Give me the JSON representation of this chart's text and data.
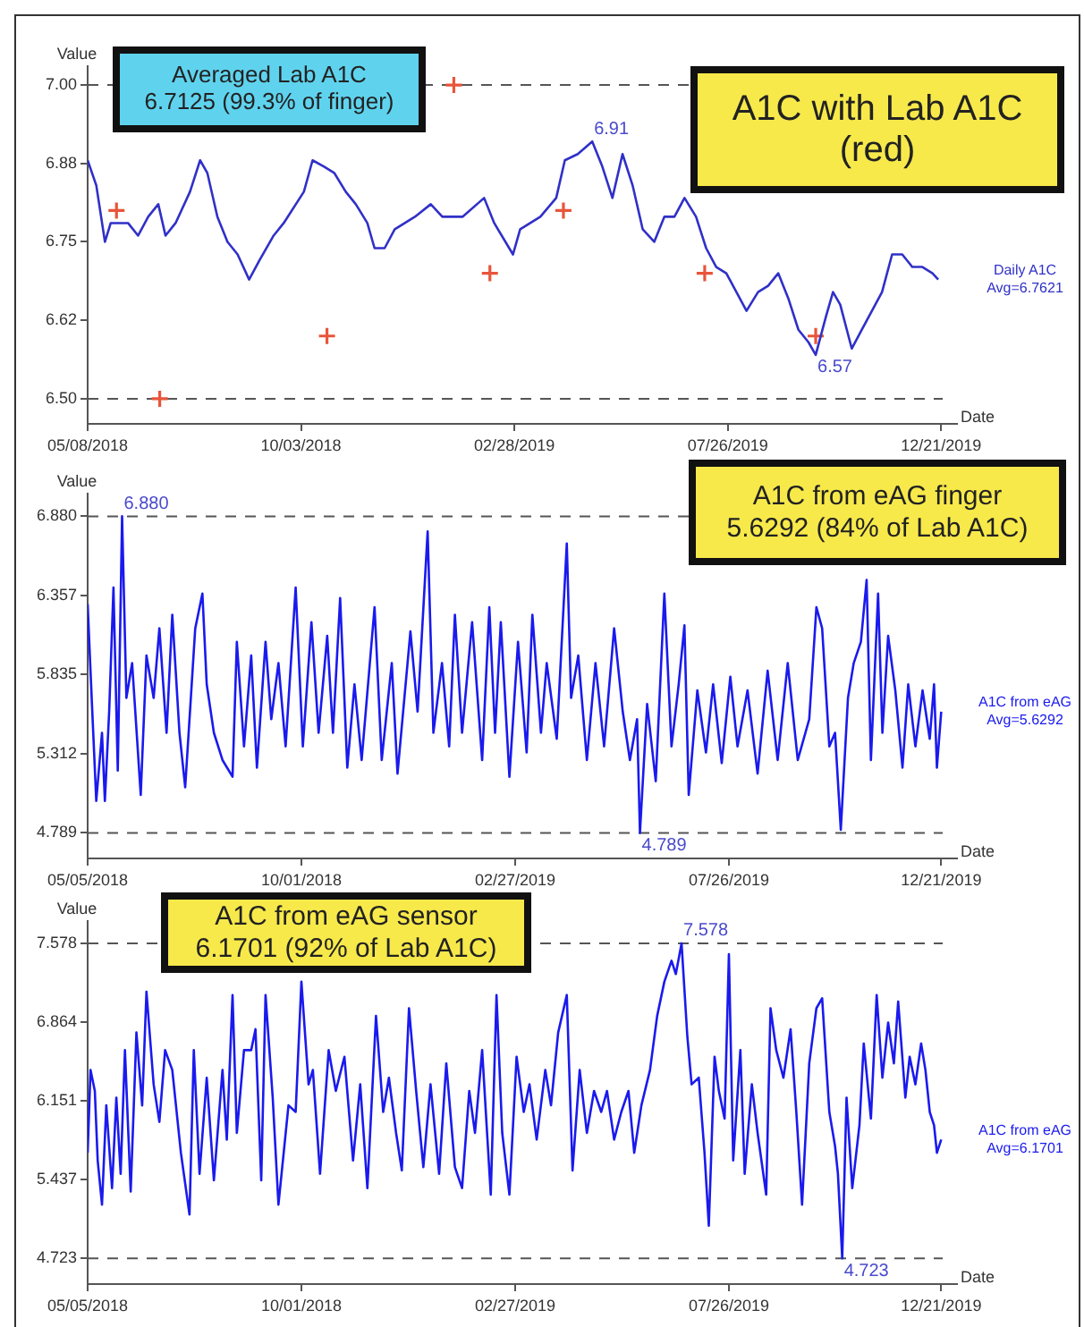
{
  "chart_data": [
    {
      "type": "line",
      "xlabel": "Date",
      "ylabel": "Value",
      "xlim": [
        "2018-05-08",
        "2020-01-01"
      ],
      "xticks": [
        {
          "value": "2018-05-08",
          "label": "05/08/2018"
        },
        {
          "value": "2018-10-03",
          "label": "10/03/2018"
        },
        {
          "value": "2019-02-28",
          "label": "02/28/2019"
        },
        {
          "value": "2019-07-26",
          "label": "07/26/2019"
        },
        {
          "value": "2019-12-21",
          "label": "12/21/2019"
        }
      ],
      "ylim": [
        6.46,
        7.03
      ],
      "yticks": [
        {
          "value": 6.5,
          "label": "6.50"
        },
        {
          "value": 6.625,
          "label": "6.62"
        },
        {
          "value": 6.75,
          "label": "6.75"
        },
        {
          "value": 6.875,
          "label": "6.88"
        },
        {
          "value": 7,
          "label": "7.00"
        }
      ],
      "series": [
        {
          "name": "Daily A1C Avg=6.7621",
          "color": "#3030c8",
          "x": [
            "2018-05-08",
            "2018-05-14",
            "2018-05-20",
            "2018-05-24",
            "2018-06-05",
            "2018-06-12",
            "2018-06-19",
            "2018-06-26",
            "2018-07-01",
            "2018-07-08",
            "2018-07-18",
            "2018-07-25",
            "2018-07-30",
            "2018-08-06",
            "2018-08-13",
            "2018-08-20",
            "2018-08-28",
            "2018-09-04",
            "2018-09-14",
            "2018-09-21",
            "2018-10-05",
            "2018-10-11",
            "2018-10-19",
            "2018-10-26",
            "2018-11-03",
            "2018-11-10",
            "2018-11-18",
            "2018-11-23",
            "2018-11-30",
            "2018-12-07",
            "2018-12-21",
            "2019-01-01",
            "2019-01-09",
            "2019-01-23",
            "2019-02-07",
            "2019-02-14",
            "2019-02-27",
            "2019-03-04",
            "2019-03-18",
            "2019-03-29",
            "2019-04-04",
            "2019-04-13",
            "2019-04-23",
            "2019-04-30",
            "2019-05-07",
            "2019-05-14",
            "2019-05-21",
            "2019-05-28",
            "2019-06-05",
            "2019-06-12",
            "2019-06-19",
            "2019-06-26",
            "2019-07-04",
            "2019-07-11",
            "2019-07-18",
            "2019-07-25",
            "2019-08-01",
            "2019-08-08",
            "2019-08-16",
            "2019-08-23",
            "2019-08-30",
            "2019-09-06",
            "2019-09-13",
            "2019-09-20",
            "2019-09-25",
            "2019-10-02",
            "2019-10-07",
            "2019-10-12",
            "2019-10-20",
            "2019-10-27",
            "2019-11-03",
            "2019-11-10",
            "2019-11-17",
            "2019-11-24",
            "2019-12-01",
            "2019-12-08",
            "2019-12-15",
            "2019-12-19"
          ],
          "values": [
            6.88,
            6.84,
            6.75,
            6.78,
            6.78,
            6.76,
            6.79,
            6.81,
            6.76,
            6.78,
            6.83,
            6.88,
            6.86,
            6.79,
            6.75,
            6.73,
            6.69,
            6.72,
            6.76,
            6.78,
            6.83,
            6.88,
            6.87,
            6.86,
            6.83,
            6.81,
            6.78,
            6.74,
            6.74,
            6.77,
            6.79,
            6.81,
            6.79,
            6.79,
            6.82,
            6.78,
            6.73,
            6.77,
            6.79,
            6.82,
            6.88,
            6.89,
            6.91,
            6.87,
            6.82,
            6.89,
            6.84,
            6.77,
            6.75,
            6.79,
            6.79,
            6.82,
            6.79,
            6.74,
            6.71,
            6.7,
            6.67,
            6.64,
            6.67,
            6.68,
            6.7,
            6.66,
            6.61,
            6.59,
            6.57,
            6.63,
            6.67,
            6.65,
            6.58,
            6.61,
            6.64,
            6.67,
            6.73,
            6.73,
            6.71,
            6.71,
            6.7,
            6.69
          ]
        },
        {
          "type": "scatter",
          "color": "#e8553a",
          "marker": "cross",
          "x": [
            "2018-05-28",
            "2018-06-27",
            "2018-10-21",
            "2019-01-17",
            "2019-02-11",
            "2019-04-03",
            "2019-07-10",
            "2019-09-25"
          ],
          "values": [
            6.8,
            6.5,
            6.6,
            7.0,
            6.7,
            6.8,
            6.7,
            6.6
          ]
        }
      ],
      "ref_lines": [
        {
          "axis": "y",
          "value": 7.0,
          "color": "#555555",
          "line_style": "dashed"
        },
        {
          "axis": "y",
          "value": 6.5,
          "color": "#555555",
          "line_style": "dashed"
        }
      ],
      "annotations": [
        "Averaged Lab A1C\n6.7125 (99.3% of finger)",
        "A1C with Lab A1C (red)",
        {
          "text": "6.91",
          "x": "2019-04-23",
          "y": 6.91
        },
        {
          "text": "6.57",
          "x": "2019-09-25",
          "y": 6.57
        }
      ]
    },
    {
      "type": "line",
      "xlabel": "Date",
      "ylabel": "Value",
      "xlim": [
        "2018-05-05",
        "2020-01-01"
      ],
      "xticks": [
        {
          "value": "2018-05-05",
          "label": "05/05/2018"
        },
        {
          "value": "2018-10-01",
          "label": "10/01/2018"
        },
        {
          "value": "2019-02-27",
          "label": "02/27/2019"
        },
        {
          "value": "2019-07-26",
          "label": "07/26/2019"
        },
        {
          "value": "2019-12-21",
          "label": "12/21/2019"
        }
      ],
      "ylim": [
        4.62,
        7.03
      ],
      "yticks": [
        4.789,
        5.312,
        5.835,
        6.357,
        {
          "value": 6.88,
          "label": "6.880"
        }
      ],
      "series": [
        {
          "name": "A1C from eAG Avg=5.6292",
          "color": "#1a1aee",
          "x": [
            "2018-05-05",
            "2018-05-08",
            "2018-05-11",
            "2018-05-15",
            "2018-05-17",
            "2018-05-20",
            "2018-05-23",
            "2018-05-26",
            "2018-05-29",
            "2018-06-01",
            "2018-06-05",
            "2018-06-11",
            "2018-06-15",
            "2018-06-20",
            "2018-06-24",
            "2018-06-29",
            "2018-07-03",
            "2018-07-08",
            "2018-07-12",
            "2018-07-19",
            "2018-07-24",
            "2018-07-27",
            "2018-08-01",
            "2018-08-07",
            "2018-08-14",
            "2018-08-17",
            "2018-08-22",
            "2018-08-27",
            "2018-08-31",
            "2018-09-06",
            "2018-09-10",
            "2018-09-15",
            "2018-09-20",
            "2018-09-27",
            "2018-10-02",
            "2018-10-08",
            "2018-10-13",
            "2018-10-19",
            "2018-10-23",
            "2018-10-28",
            "2018-11-02",
            "2018-11-07",
            "2018-11-12",
            "2018-11-21",
            "2018-11-26",
            "2018-12-03",
            "2018-12-07",
            "2018-12-16",
            "2018-12-21",
            "2018-12-28",
            "2019-01-01",
            "2019-01-07",
            "2019-01-12",
            "2019-01-16",
            "2019-01-21",
            "2019-01-28",
            "2019-02-04",
            "2019-02-09",
            "2019-02-13",
            "2019-02-17",
            "2019-02-23",
            "2019-03-01",
            "2019-03-07",
            "2019-03-11",
            "2019-03-17",
            "2019-03-21",
            "2019-03-28",
            "2019-04-04",
            "2019-04-07",
            "2019-04-12",
            "2019-04-18",
            "2019-04-24",
            "2019-04-30",
            "2019-05-07",
            "2019-05-13",
            "2019-05-18",
            "2019-05-23",
            "2019-05-25",
            "2019-05-30",
            "2019-06-05",
            "2019-06-11",
            "2019-06-16",
            "2019-06-21",
            "2019-06-25",
            "2019-06-28",
            "2019-07-04",
            "2019-07-10",
            "2019-07-15",
            "2019-07-21",
            "2019-07-27",
            "2019-08-01",
            "2019-08-08",
            "2019-08-15",
            "2019-08-22",
            "2019-08-29",
            "2019-09-05",
            "2019-09-12",
            "2019-09-20",
            "2019-09-25",
            "2019-09-29",
            "2019-10-04",
            "2019-10-08",
            "2019-10-12",
            "2019-10-17",
            "2019-10-21",
            "2019-10-26",
            "2019-10-30",
            "2019-11-02",
            "2019-11-07",
            "2019-11-10",
            "2019-11-14",
            "2019-11-19",
            "2019-11-24",
            "2019-11-28",
            "2019-12-03",
            "2019-12-08",
            "2019-12-13",
            "2019-12-16",
            "2019-12-18",
            "2019-12-21"
          ],
          "values": [
            6.3,
            5.64,
            5.0,
            5.45,
            5.0,
            5.59,
            6.41,
            5.2,
            6.88,
            5.68,
            5.91,
            5.04,
            5.96,
            5.68,
            6.14,
            5.45,
            6.23,
            5.45,
            5.09,
            6.14,
            6.37,
            5.77,
            5.45,
            5.27,
            5.16,
            6.05,
            5.36,
            5.96,
            5.22,
            6.05,
            5.54,
            5.91,
            5.36,
            6.41,
            5.36,
            6.18,
            5.45,
            6.09,
            5.45,
            6.34,
            5.22,
            5.77,
            5.27,
            6.28,
            5.27,
            5.91,
            5.18,
            6.12,
            5.59,
            6.78,
            5.45,
            5.91,
            5.36,
            6.23,
            5.45,
            6.18,
            5.27,
            6.28,
            5.45,
            6.18,
            5.16,
            6.05,
            5.32,
            6.23,
            5.45,
            5.91,
            5.41,
            6.7,
            5.68,
            5.96,
            5.27,
            5.91,
            5.36,
            6.14,
            5.59,
            5.27,
            5.54,
            4.789,
            5.64,
            5.13,
            6.37,
            5.36,
            5.77,
            6.16,
            5.04,
            5.73,
            5.32,
            5.77,
            5.25,
            5.82,
            5.36,
            5.73,
            5.18,
            5.86,
            5.27,
            5.91,
            5.27,
            5.54,
            6.28,
            6.14,
            5.36,
            5.45,
            4.81,
            5.68,
            5.91,
            6.05,
            6.46,
            5.27,
            6.37,
            5.45,
            6.09,
            5.73,
            5.22,
            5.77,
            5.36,
            5.73,
            5.41,
            5.77,
            5.22,
            5.59
          ]
        }
      ],
      "ref_lines": [
        {
          "axis": "y",
          "value": 6.88,
          "color": "#555555",
          "line_style": "dashed"
        },
        {
          "axis": "y",
          "value": 4.789,
          "color": "#555555",
          "line_style": "dashed"
        }
      ],
      "annotations": [
        "A1C from eAG finger\n5.6292 (84% of Lab A1C)",
        {
          "text": "6.880",
          "x": "2018-05-29",
          "y": 6.88
        },
        {
          "text": "4.789",
          "x": "2019-05-25",
          "y": 4.789
        }
      ]
    },
    {
      "type": "line",
      "xlabel": "Date",
      "ylabel": "Value",
      "xlim": [
        "2018-05-05",
        "2020-01-01"
      ],
      "xticks": [
        {
          "value": "2018-05-05",
          "label": "05/05/2018"
        },
        {
          "value": "2018-10-01",
          "label": "10/01/2018"
        },
        {
          "value": "2019-02-27",
          "label": "02/27/2019"
        },
        {
          "value": "2019-07-26",
          "label": "07/26/2019"
        },
        {
          "value": "2019-12-21",
          "label": "12/21/2019"
        }
      ],
      "ylim": [
        4.49,
        7.78
      ],
      "yticks": [
        4.723,
        5.437,
        6.151,
        6.864,
        7.578
      ],
      "series": [
        {
          "name": "A1C from eAG Avg=6.1701",
          "color": "#1a1aee",
          "x": [
            "2018-05-05",
            "2018-05-07",
            "2018-05-10",
            "2018-05-12",
            "2018-05-15",
            "2018-05-18",
            "2018-05-22",
            "2018-05-25",
            "2018-05-28",
            "2018-05-31",
            "2018-06-04",
            "2018-06-08",
            "2018-06-12",
            "2018-06-15",
            "2018-06-20",
            "2018-06-24",
            "2018-06-28",
            "2018-07-03",
            "2018-07-09",
            "2018-07-15",
            "2018-07-18",
            "2018-07-22",
            "2018-07-27",
            "2018-08-01",
            "2018-08-07",
            "2018-08-10",
            "2018-08-14",
            "2018-08-17",
            "2018-08-22",
            "2018-08-27",
            "2018-08-30",
            "2018-09-03",
            "2018-09-06",
            "2018-09-11",
            "2018-09-15",
            "2018-09-22",
            "2018-09-27",
            "2018-10-01",
            "2018-10-06",
            "2018-10-09",
            "2018-10-14",
            "2018-10-20",
            "2018-10-25",
            "2018-10-31",
            "2018-11-06",
            "2018-11-11",
            "2018-11-16",
            "2018-11-22",
            "2018-11-27",
            "2018-12-01",
            "2018-12-06",
            "2018-12-10",
            "2018-12-15",
            "2018-12-20",
            "2018-12-25",
            "2018-12-30",
            "2019-01-05",
            "2019-01-10",
            "2019-01-16",
            "2019-01-21",
            "2019-01-26",
            "2019-01-30",
            "2019-02-04",
            "2019-02-10",
            "2019-02-14",
            "2019-02-18",
            "2019-02-23",
            "2019-02-28",
            "2019-03-05",
            "2019-03-09",
            "2019-03-14",
            "2019-03-20",
            "2019-03-24",
            "2019-03-29",
            "2019-04-04",
            "2019-04-08",
            "2019-04-13",
            "2019-04-18",
            "2019-04-23",
            "2019-04-28",
            "2019-05-02",
            "2019-05-07",
            "2019-05-12",
            "2019-05-17",
            "2019-05-21",
            "2019-05-26",
            "2019-06-01",
            "2019-06-06",
            "2019-06-11",
            "2019-06-16",
            "2019-06-19",
            "2019-06-23",
            "2019-06-27",
            "2019-06-30",
            "2019-07-05",
            "2019-07-09",
            "2019-07-12",
            "2019-07-16",
            "2019-07-19",
            "2019-07-23",
            "2019-07-26",
            "2019-07-29",
            "2019-08-03",
            "2019-08-06",
            "2019-08-11",
            "2019-08-15",
            "2019-08-21",
            "2019-08-24",
            "2019-08-28",
            "2019-09-02",
            "2019-09-07",
            "2019-09-11",
            "2019-09-15",
            "2019-09-20",
            "2019-09-25",
            "2019-09-29",
            "2019-10-04",
            "2019-10-08",
            "2019-10-10",
            "2019-10-13",
            "2019-10-16",
            "2019-10-20",
            "2019-10-25",
            "2019-10-28",
            "2019-11-02",
            "2019-11-06",
            "2019-11-10",
            "2019-11-14",
            "2019-11-18",
            "2019-11-21",
            "2019-11-26",
            "2019-11-29",
            "2019-12-03",
            "2019-12-07",
            "2019-12-10",
            "2019-12-13",
            "2019-12-16",
            "2019-12-18",
            "2019-12-21"
          ],
          "values": [
            5.68,
            6.43,
            6.24,
            5.61,
            5.21,
            6.11,
            5.36,
            6.18,
            5.49,
            6.61,
            5.33,
            6.77,
            6.11,
            7.14,
            6.3,
            5.96,
            6.61,
            6.43,
            5.68,
            5.12,
            6.61,
            5.49,
            6.36,
            5.43,
            6.43,
            5.8,
            7.11,
            5.86,
            6.61,
            6.61,
            6.8,
            5.43,
            7.11,
            6.18,
            5.21,
            6.11,
            6.05,
            7.23,
            6.3,
            6.43,
            5.49,
            6.61,
            6.24,
            6.55,
            5.61,
            6.3,
            5.36,
            6.92,
            6.05,
            6.36,
            5.86,
            5.52,
            6.99,
            6.24,
            5.55,
            6.3,
            5.49,
            6.49,
            5.55,
            5.36,
            6.24,
            5.86,
            6.61,
            5.3,
            7.11,
            5.86,
            5.3,
            6.55,
            6.05,
            6.3,
            5.8,
            6.43,
            6.11,
            6.77,
            7.11,
            5.52,
            6.43,
            5.86,
            6.24,
            6.05,
            6.24,
            5.8,
            6.05,
            6.24,
            5.68,
            6.11,
            6.43,
            6.92,
            7.23,
            7.42,
            7.3,
            7.578,
            6.74,
            6.3,
            6.36,
            5.68,
            5.02,
            6.55,
            6.24,
            5.99,
            7.48,
            5.61,
            6.61,
            5.49,
            6.3,
            5.86,
            5.3,
            6.99,
            6.61,
            6.36,
            6.8,
            6.05,
            5.21,
            6.49,
            6.99,
            7.08,
            6.05,
            5.74,
            5.49,
            4.723,
            6.18,
            5.36,
            5.93,
            6.67,
            5.99,
            7.11,
            6.36,
            6.86,
            6.49,
            7.05,
            6.18,
            6.55,
            6.3,
            6.67,
            6.43,
            6.05,
            5.93,
            5.68,
            5.8
          ]
        }
      ],
      "ref_lines": [
        {
          "axis": "y",
          "value": 7.578,
          "color": "#555555",
          "line_style": "dashed"
        },
        {
          "axis": "y",
          "value": 4.723,
          "color": "#555555",
          "line_style": "dashed"
        }
      ],
      "annotations": [
        "A1C from eAG sensor\n6.1701 (92% of Lab A1C)",
        {
          "text": "7.578",
          "x": "2019-06-23",
          "y": 7.578
        },
        {
          "text": "4.723",
          "x": "2019-10-13",
          "y": 4.723
        }
      ]
    }
  ]
}
